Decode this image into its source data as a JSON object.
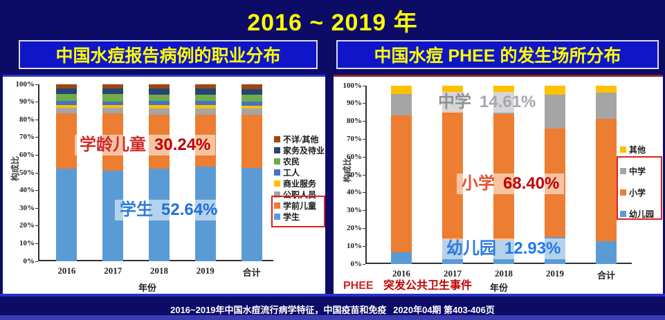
{
  "page": {
    "title": "2016 ~ 2019 年",
    "citation_main": "2016~2019年中国水痘流行病学特征，中国疫苗和免疫",
    "citation_issue": "2020年04期 第403-406页",
    "colors": {
      "background": "#0c0c66",
      "header_box_bg": "#1016c8",
      "title_yellow": "#ffff00",
      "panel_bg": "#ffffff",
      "highlight_box_red": "#e02020"
    }
  },
  "left_panel": {
    "header": "中国水痘报告病例的职业分布"
  },
  "right_panel": {
    "header": "中国水痘 PHEE 的发生场所分布",
    "footnote_abbr": "PHEE",
    "footnote_text": "突发公共卫生事件"
  },
  "chart_data": [
    {
      "type": "bar",
      "stacked": true,
      "title": "中国水痘报告病例的职业分布",
      "categories": [
        "2016",
        "2017",
        "2018",
        "2019",
        "合计"
      ],
      "xlabel": "年份",
      "ylabel": "构成比",
      "ylim": [
        0,
        100
      ],
      "yticks": [
        "0%",
        "10%",
        "20%",
        "30%",
        "40%",
        "50%",
        "60%",
        "70%",
        "80%",
        "90%",
        "100%"
      ],
      "grid": false,
      "legend_position": "right",
      "series": [
        {
          "name": "学生",
          "color": "#5B9BD5",
          "values": [
            52.5,
            51.0,
            52.5,
            53.5,
            52.64
          ]
        },
        {
          "name": "学前儿童",
          "color": "#ED7D31",
          "values": [
            31.0,
            32.5,
            30.5,
            29.5,
            30.24
          ]
        },
        {
          "name": "公职人员",
          "color": "#A5A5A5",
          "values": [
            3.3,
            3.2,
            3.5,
            3.5,
            3.4
          ]
        },
        {
          "name": "商业服务",
          "color": "#FFC000",
          "values": [
            1.5,
            1.5,
            1.8,
            1.8,
            1.6
          ]
        },
        {
          "name": "工人",
          "color": "#4472C4",
          "values": [
            2.2,
            2.2,
            2.2,
            2.2,
            2.2
          ]
        },
        {
          "name": "农民",
          "color": "#70AD47",
          "values": [
            4.0,
            4.0,
            3.7,
            3.7,
            3.9
          ]
        },
        {
          "name": "家务及待业",
          "color": "#264478",
          "values": [
            3.3,
            3.3,
            3.3,
            3.3,
            3.4
          ]
        },
        {
          "name": "不详/其他",
          "color": "#9E480E",
          "values": [
            2.2,
            2.3,
            2.5,
            2.5,
            2.62
          ]
        }
      ],
      "legend_order": [
        "不详/其他",
        "家务及待业",
        "农民",
        "工人",
        "商业服务",
        "公职人员",
        "学前儿童",
        "学生"
      ],
      "highlight_legend_items": [
        "学前儿童",
        "学生"
      ],
      "annotations": [
        {
          "label": "学龄儿童",
          "value": "30.24%",
          "label_color": "#cf2b2b",
          "value_color": "#c00000"
        },
        {
          "label": "学生",
          "value": "52.64%",
          "label_color": "#2e7bde",
          "value_color": "#1f6fd6"
        }
      ]
    },
    {
      "type": "bar",
      "stacked": true,
      "title": "中国水痘 PHEE 的发生场所分布",
      "categories": [
        "2016",
        "2017",
        "2018",
        "2019",
        "合计"
      ],
      "xlabel": "年份",
      "ylabel": "构成比",
      "ylim": [
        0,
        100
      ],
      "yticks": [
        "0%",
        "10%",
        "20%",
        "30%",
        "40%",
        "50%",
        "60%",
        "70%",
        "80%",
        "90%",
        "100%"
      ],
      "grid": false,
      "legend_position": "right",
      "series": [
        {
          "name": "幼儿园",
          "color": "#5B9BD5",
          "values": [
            6.5,
            13.0,
            13.0,
            15.0,
            12.93
          ]
        },
        {
          "name": "小学",
          "color": "#ED7D31",
          "values": [
            77.0,
            72.5,
            71.0,
            61.0,
            68.4
          ]
        },
        {
          "name": "中学",
          "color": "#A5A5A5",
          "values": [
            12.0,
            11.0,
            12.5,
            19.0,
            14.61
          ]
        },
        {
          "name": "其他",
          "color": "#FFC000",
          "values": [
            4.5,
            3.5,
            3.5,
            5.0,
            4.06
          ]
        }
      ],
      "legend_order": [
        "其他",
        "中学",
        "小学",
        "幼儿园"
      ],
      "highlight_legend_items": [
        "中学",
        "小学",
        "幼儿园"
      ],
      "annotations": [
        {
          "label": "中学",
          "value": "14.61%",
          "label_color": "#8c9094",
          "value_color": "#a4a8ae"
        },
        {
          "label": "小学",
          "value": "68.40%",
          "label_color": "#e8502e",
          "value_color": "#c00000"
        },
        {
          "label": "幼儿园",
          "value": "12.93%",
          "label_color": "#2e7bde",
          "value_color": "#1e78e8"
        }
      ]
    }
  ]
}
